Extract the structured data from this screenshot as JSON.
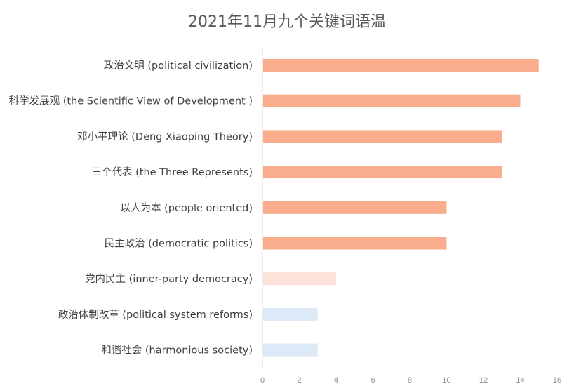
{
  "chart_data": {
    "type": "bar",
    "orientation": "horizontal",
    "title": "2021年11月九个关键词语温",
    "xlabel": "",
    "ylabel": "",
    "categories": [
      "政治文明 (political civilization)",
      "科学发展观 (the Scientific View of Development )",
      "邓小平理论 (Deng Xiaoping Theory)",
      "三个代表 (the Three Represents)",
      "以人为本 (people oriented)",
      "民主政治 (democratic politics)",
      "党内民主 (inner-party democracy)",
      "政治体制改革 (political system reforms)",
      "和谐社会 (harmonious society)"
    ],
    "values": [
      15,
      14,
      13,
      13,
      10,
      10,
      4,
      3,
      3
    ],
    "colors": [
      "#f9ad8c",
      "#f9ad8c",
      "#f9ad8c",
      "#f9ad8c",
      "#f9ad8c",
      "#f9ad8c",
      "#fde3d9",
      "#dde9f7",
      "#dde9f7"
    ],
    "xlim": [
      0,
      16
    ],
    "xticks": [
      0,
      2,
      4,
      6,
      8,
      10,
      12,
      14,
      16
    ],
    "grid": false,
    "legend": "none"
  }
}
